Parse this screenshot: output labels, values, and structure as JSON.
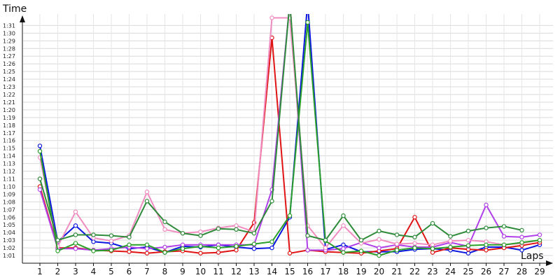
{
  "chart_data": {
    "type": "line",
    "title": "",
    "ylabel": "Time",
    "xlabel": "Laps",
    "x": [
      1,
      2,
      3,
      4,
      5,
      6,
      7,
      8,
      9,
      10,
      11,
      12,
      13,
      14,
      15,
      16,
      17,
      18,
      19,
      20,
      21,
      22,
      23,
      24,
      25,
      26,
      27,
      28,
      29
    ],
    "y_ticks": [
      "1:01",
      "1:02",
      "1:03",
      "1:04",
      "1:05",
      "1:06",
      "1:07",
      "1:08",
      "1:09",
      "1:10",
      "1:11",
      "1:12",
      "1:13",
      "1:14",
      "1:15",
      "1:16",
      "1:17",
      "1:18",
      "1:19",
      "1:20",
      "1:21",
      "1:22",
      "1:23",
      "1:24",
      "1:25",
      "1:26",
      "1:27",
      "1:28",
      "1:29",
      "1:30",
      "1:31"
    ],
    "ylim": [
      60,
      92.5
    ],
    "grid": true,
    "series": [
      {
        "color": "#0b16e0",
        "values": [
          75.3,
          62.8,
          64.9,
          62.8,
          62.6,
          61.9,
          62.1,
          61.4,
          62.2,
          62.1,
          62.4,
          62.1,
          61.9,
          62.0,
          66.0,
          94.0,
          61.8,
          62.4,
          61.5,
          61.5,
          61.5,
          61.8,
          61.9,
          61.7,
          61.3,
          62.1,
          62.1,
          61.7,
          62.4
        ]
      },
      {
        "color": "#e01414",
        "values": [
          70.0,
          62.0,
          62.0,
          61.7,
          61.6,
          61.5,
          61.3,
          61.5,
          61.6,
          61.3,
          61.4,
          61.7,
          65.3,
          89.4,
          61.3,
          61.7,
          61.5,
          61.4,
          61.3,
          61.6,
          61.9,
          66.0,
          61.4,
          62.0,
          61.8,
          61.7,
          62.0,
          62.3,
          62.7
        ]
      },
      {
        "color": "#b040e8",
        "values": [
          69.6,
          61.9,
          61.9,
          61.7,
          61.9,
          62.1,
          61.9,
          62.1,
          62.4,
          62.4,
          62.4,
          62.4,
          62.4,
          69.6,
          94.0,
          61.7,
          61.7,
          61.9,
          62.7,
          62.0,
          62.4,
          62.1,
          62.1,
          62.7,
          62.2,
          67.6,
          63.5,
          63.4,
          63.7
        ]
      },
      {
        "color": "#f08cc0",
        "values": [
          73.8,
          62.2,
          66.7,
          63.3,
          62.9,
          63.6,
          69.3,
          64.4,
          63.9,
          64.1,
          64.6,
          64.9,
          64.1,
          92.0,
          92.0,
          64.9,
          62.0,
          64.9,
          62.6,
          63.1,
          62.5,
          62.6,
          62.4,
          62.9,
          63.0,
          62.8,
          62.4,
          62.6,
          63.0
        ]
      },
      {
        "color": "#2aa02a",
        "values": [
          74.6,
          61.6,
          62.6,
          61.6,
          61.7,
          62.4,
          62.4,
          61.4,
          61.9,
          62.2,
          62.0,
          62.2,
          62.5,
          62.8,
          66.2,
          91.4,
          62.9,
          61.4,
          61.6,
          61.0,
          61.7,
          62.0,
          61.9,
          62.1,
          62.3,
          62.4,
          62.4,
          62.7,
          63.0
        ]
      },
      {
        "color": "#2e8b3a",
        "values": [
          71.0,
          63.0,
          63.7,
          63.7,
          63.6,
          63.4,
          68.1,
          65.4,
          63.9,
          63.6,
          64.5,
          64.4,
          63.9,
          68.1,
          94.0,
          63.6,
          63.0,
          66.2,
          63.0,
          64.2,
          63.7,
          63.4,
          65.2,
          63.5,
          64.2,
          64.6,
          64.8,
          64.3,
          null
        ]
      }
    ]
  }
}
